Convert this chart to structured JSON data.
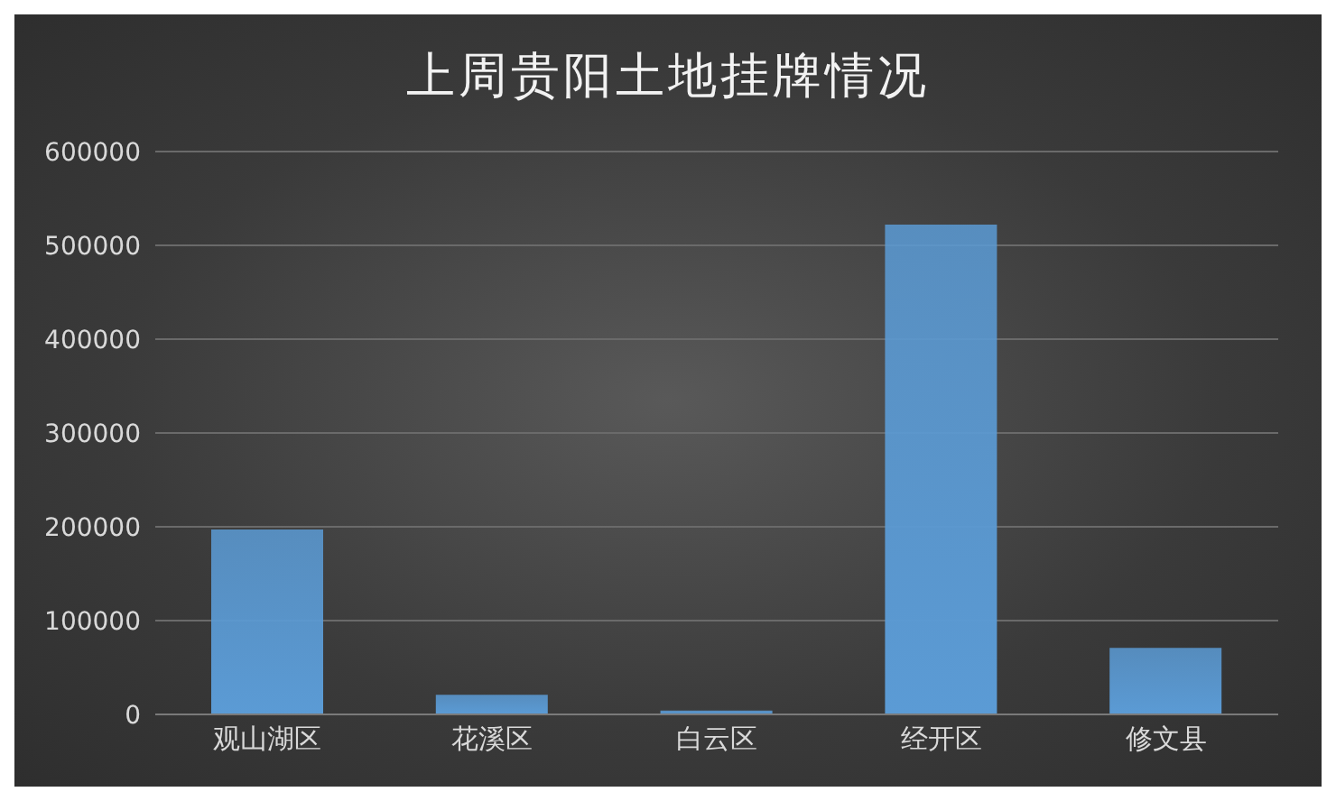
{
  "chart_data": {
    "type": "bar",
    "title": "上周贵阳土地挂牌情况",
    "categories": [
      "观山湖区",
      "花溪区",
      "白云区",
      "经开区",
      "修文县"
    ],
    "values": [
      197000,
      21000,
      4000,
      522000,
      71000
    ],
    "color": "#5b9bd5",
    "ylim": [
      0,
      600000
    ],
    "yticks": [
      0,
      100000,
      200000,
      300000,
      400000,
      500000,
      600000
    ],
    "grid": "y"
  }
}
